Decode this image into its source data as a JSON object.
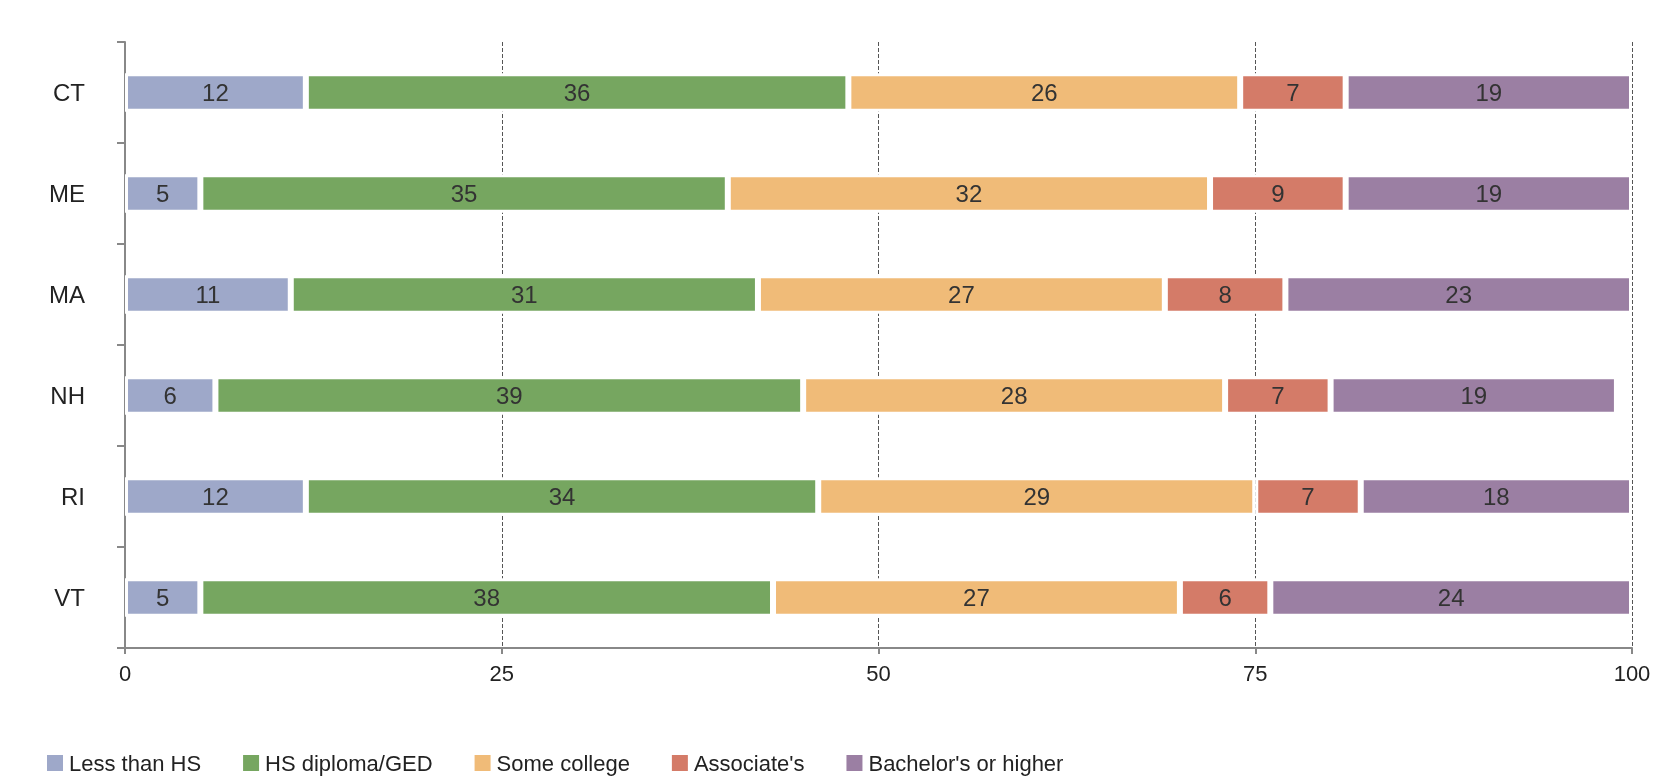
{
  "chart_data": {
    "type": "bar",
    "orientation": "horizontal",
    "stacked": true,
    "categories": [
      "CT",
      "ME",
      "MA",
      "NH",
      "RI",
      "VT"
    ],
    "series": [
      {
        "name": "Less than HS",
        "color": "#9ea8c9",
        "values": [
          12,
          5,
          11,
          6,
          12,
          5
        ]
      },
      {
        "name": "HS diploma/GED",
        "color": "#76a660",
        "values": [
          36,
          35,
          31,
          39,
          34,
          38
        ]
      },
      {
        "name": "Some college",
        "color": "#f0bb78",
        "values": [
          26,
          32,
          27,
          28,
          29,
          27
        ]
      },
      {
        "name": "Associate's",
        "color": "#d47b68",
        "values": [
          7,
          9,
          8,
          7,
          7,
          6
        ]
      },
      {
        "name": "Bachelor's or higher",
        "color": "#9b7fa3",
        "values": [
          19,
          19,
          23,
          19,
          18,
          24
        ]
      }
    ],
    "xlim": [
      0,
      100
    ],
    "xticks": [
      0,
      25,
      50,
      75,
      100
    ],
    "grid": "x",
    "legend": "bottom left",
    "data_labels": true
  }
}
